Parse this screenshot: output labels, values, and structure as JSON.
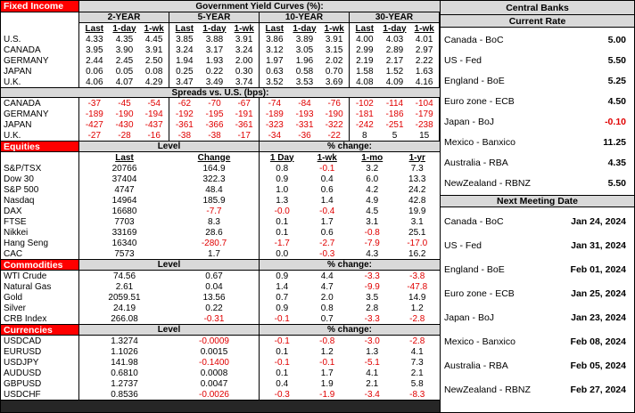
{
  "colors": {
    "section_red": "#ff0000",
    "header_gray": "#d9d9d9",
    "negative_red": "#e00000"
  },
  "fixed_income": {
    "section_label": "Fixed Income",
    "table_title": "Government Yield Curves (%):",
    "maturities": [
      "2-YEAR",
      "5-YEAR",
      "10-YEAR",
      "30-YEAR"
    ],
    "col_headers": [
      "Last",
      "1-day",
      "1-wk"
    ],
    "yields": [
      {
        "label": "U.S.",
        "values": [
          "4.33",
          "4.35",
          "4.45",
          "3.85",
          "3.88",
          "3.91",
          "3.86",
          "3.89",
          "3.91",
          "4.00",
          "4.03",
          "4.01"
        ]
      },
      {
        "label": "CANADA",
        "values": [
          "3.95",
          "3.90",
          "3.91",
          "3.24",
          "3.17",
          "3.24",
          "3.12",
          "3.05",
          "3.15",
          "2.99",
          "2.89",
          "2.97"
        ]
      },
      {
        "label": "GERMANY",
        "values": [
          "2.44",
          "2.45",
          "2.50",
          "1.94",
          "1.93",
          "2.00",
          "1.97",
          "1.96",
          "2.02",
          "2.19",
          "2.17",
          "2.22"
        ]
      },
      {
        "label": "JAPAN",
        "values": [
          "0.06",
          "0.05",
          "0.08",
          "0.25",
          "0.22",
          "0.30",
          "0.63",
          "0.58",
          "0.70",
          "1.58",
          "1.52",
          "1.63"
        ]
      },
      {
        "label": "U.K.",
        "values": [
          "4.06",
          "4.07",
          "4.29",
          "3.47",
          "3.49",
          "3.74",
          "3.52",
          "3.53",
          "3.69",
          "4.08",
          "4.09",
          "4.16"
        ]
      }
    ],
    "spreads_title": "Spreads vs. U.S. (bps):",
    "spreads": [
      {
        "label": "CANADA",
        "values": [
          "-37",
          "-45",
          "-54",
          "-62",
          "-70",
          "-67",
          "-74",
          "-84",
          "-76",
          "-102",
          "-114",
          "-104"
        ]
      },
      {
        "label": "GERMANY",
        "values": [
          "-189",
          "-190",
          "-194",
          "-192",
          "-195",
          "-191",
          "-189",
          "-193",
          "-190",
          "-181",
          "-186",
          "-179"
        ]
      },
      {
        "label": "JAPAN",
        "values": [
          "-427",
          "-430",
          "-437",
          "-361",
          "-366",
          "-361",
          "-323",
          "-331",
          "-322",
          "-242",
          "-251",
          "-238"
        ]
      },
      {
        "label": "U.K.",
        "values": [
          "-27",
          "-28",
          "-16",
          "-38",
          "-38",
          "-17",
          "-34",
          "-36",
          "-22",
          "8",
          "5",
          "15"
        ]
      }
    ]
  },
  "equities": {
    "section_label": "Equities",
    "level_header": "Level",
    "pct_header": "% change:",
    "col_headers": [
      "Last",
      "Change",
      "1 Day",
      "1-wk",
      "1-mo",
      "1-yr"
    ],
    "rows": [
      {
        "label": "S&P/TSX",
        "last": "20766",
        "change": "164.9",
        "pct": [
          "0.8",
          "-0.1",
          "3.2",
          "7.3"
        ]
      },
      {
        "label": "Dow 30",
        "last": "37404",
        "change": "322.3",
        "pct": [
          "0.9",
          "0.4",
          "6.0",
          "13.3"
        ]
      },
      {
        "label": "S&P 500",
        "last": "4747",
        "change": "48.4",
        "pct": [
          "1.0",
          "0.6",
          "4.2",
          "24.2"
        ]
      },
      {
        "label": "Nasdaq",
        "last": "14964",
        "change": "185.9",
        "pct": [
          "1.3",
          "1.4",
          "4.9",
          "42.8"
        ]
      },
      {
        "label": "DAX",
        "last": "16680",
        "change": "-7.7",
        "pct": [
          "-0.0",
          "-0.4",
          "4.5",
          "19.9"
        ]
      },
      {
        "label": "FTSE",
        "last": "7703",
        "change": "8.3",
        "pct": [
          "0.1",
          "1.7",
          "3.1",
          "3.1"
        ]
      },
      {
        "label": "Nikkei",
        "last": "33169",
        "change": "28.6",
        "pct": [
          "0.1",
          "0.6",
          "-0.8",
          "25.1"
        ]
      },
      {
        "label": "Hang Seng",
        "last": "16340",
        "change": "-280.7",
        "pct": [
          "-1.7",
          "-2.7",
          "-7.9",
          "-17.0"
        ]
      },
      {
        "label": "CAC",
        "last": "7573",
        "change": "1.7",
        "pct": [
          "0.0",
          "-0.3",
          "4.3",
          "16.2"
        ]
      }
    ]
  },
  "commodities": {
    "section_label": "Commodities",
    "level_header": "Level",
    "pct_header": "% change:",
    "rows": [
      {
        "label": "WTI Crude",
        "last": "74.56",
        "change": "0.67",
        "pct": [
          "0.9",
          "4.4",
          "-3.3",
          "-3.8"
        ]
      },
      {
        "label": "Natural Gas",
        "last": "2.61",
        "change": "0.04",
        "pct": [
          "1.4",
          "4.7",
          "-9.9",
          "-47.8"
        ]
      },
      {
        "label": "Gold",
        "last": "2059.51",
        "change": "13.56",
        "pct": [
          "0.7",
          "2.0",
          "3.5",
          "14.9"
        ]
      },
      {
        "label": "Silver",
        "last": "24.19",
        "change": "0.22",
        "pct": [
          "0.9",
          "0.8",
          "2.8",
          "1.2"
        ]
      },
      {
        "label": "CRB Index",
        "last": "266.08",
        "change": "-0.31",
        "pct": [
          "-0.1",
          "0.7",
          "-3.3",
          "-2.8"
        ]
      }
    ]
  },
  "currencies": {
    "section_label": "Currencies",
    "level_header": "Level",
    "pct_header": "% change:",
    "rows": [
      {
        "label": "USDCAD",
        "last": "1.3274",
        "change": "-0.0009",
        "pct": [
          "-0.1",
          "-0.8",
          "-3.0",
          "-2.8"
        ]
      },
      {
        "label": "EURUSD",
        "last": "1.1026",
        "change": "0.0015",
        "pct": [
          "0.1",
          "1.2",
          "1.3",
          "4.1"
        ]
      },
      {
        "label": "USDJPY",
        "last": "141.98",
        "change": "-0.1400",
        "pct": [
          "-0.1",
          "-0.1",
          "-5.1",
          "7.3"
        ]
      },
      {
        "label": "AUDUSD",
        "last": "0.6810",
        "change": "0.0008",
        "pct": [
          "0.1",
          "1.7",
          "4.1",
          "2.1"
        ]
      },
      {
        "label": "GBPUSD",
        "last": "1.2737",
        "change": "0.0047",
        "pct": [
          "0.4",
          "1.9",
          "2.1",
          "5.8"
        ]
      },
      {
        "label": "USDCHF",
        "last": "0.8536",
        "change": "-0.0026",
        "pct": [
          "-0.3",
          "-1.9",
          "-3.4",
          "-8.3"
        ]
      }
    ]
  },
  "central_banks": {
    "title": "Central Banks",
    "current_rate_header": "Current Rate",
    "rates": [
      {
        "label": "Canada - BoC",
        "value": "5.00"
      },
      {
        "label": "US - Fed",
        "value": "5.50"
      },
      {
        "label": "England - BoE",
        "value": "5.25"
      },
      {
        "label": "Euro zone - ECB",
        "value": "4.50"
      },
      {
        "label": "Japan - BoJ",
        "value": "-0.10"
      },
      {
        "label": "Mexico - Banxico",
        "value": "11.25"
      },
      {
        "label": "Australia - RBA",
        "value": "4.35"
      },
      {
        "label": "NewZealand - RBNZ",
        "value": "5.50"
      }
    ],
    "meeting_header": "Next Meeting Date",
    "meetings": [
      {
        "label": "Canada - BoC",
        "value": "Jan 24, 2024"
      },
      {
        "label": "US - Fed",
        "value": "Jan 31, 2024"
      },
      {
        "label": "England - BoE",
        "value": "Feb 01, 2024"
      },
      {
        "label": "Euro zone - ECB",
        "value": "Jan 25, 2024"
      },
      {
        "label": "Japan - BoJ",
        "value": "Jan 23, 2024"
      },
      {
        "label": "Mexico - Banxico",
        "value": "Feb 08, 2024"
      },
      {
        "label": "Australia - RBA",
        "value": "Feb 05, 2024"
      },
      {
        "label": "NewZealand - RBNZ",
        "value": "Feb 27, 2024"
      }
    ]
  }
}
